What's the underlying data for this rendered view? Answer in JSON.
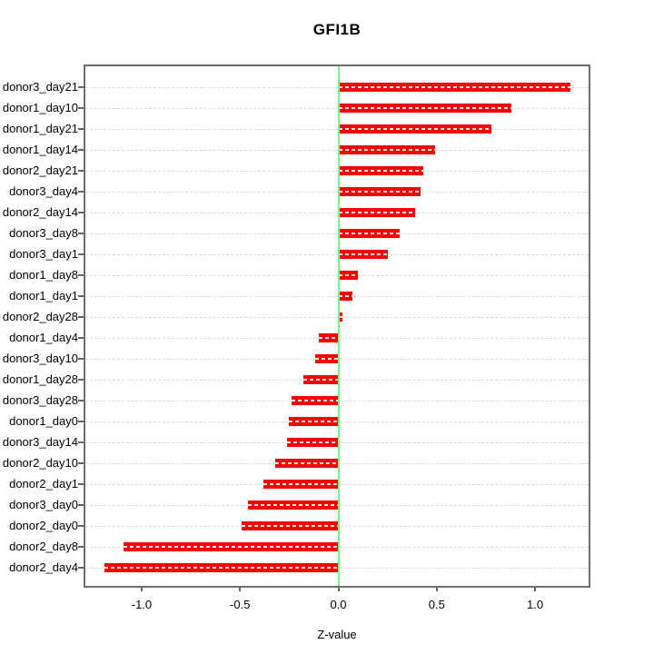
{
  "title": "GFI1B",
  "xlabel": "Z-value",
  "chart_data": {
    "type": "bar",
    "orientation": "horizontal",
    "title": "GFI1B",
    "xlabel": "Z-value",
    "ylabel": "",
    "categories": [
      "donor3_day21",
      "donor1_day10",
      "donor1_day21",
      "donor1_day14",
      "donor2_day21",
      "donor3_day4",
      "donor2_day14",
      "donor3_day8",
      "donor3_day1",
      "donor1_day8",
      "donor1_day1",
      "donor2_day28",
      "donor1_day4",
      "donor3_day10",
      "donor1_day28",
      "donor3_day28",
      "donor1_day0",
      "donor3_day14",
      "donor2_day10",
      "donor2_day1",
      "donor3_day0",
      "donor2_day0",
      "donor2_day8",
      "donor2_day4"
    ],
    "values": [
      1.18,
      0.88,
      0.78,
      0.49,
      0.43,
      0.42,
      0.39,
      0.31,
      0.25,
      0.1,
      0.07,
      0.02,
      -0.1,
      -0.12,
      -0.18,
      -0.24,
      -0.25,
      -0.26,
      -0.32,
      -0.38,
      -0.46,
      -0.49,
      -1.09,
      -1.19
    ],
    "x_ticks": [
      -1.0,
      -0.5,
      0.0,
      0.5,
      1.0
    ],
    "x_tick_labels": [
      "-1.0",
      "-0.5",
      "0.0",
      "0.5",
      "1.0"
    ],
    "xlim": [
      -1.286,
      1.272
    ],
    "grid": "horizontal-dashed-per-category",
    "legend": "none",
    "zero_reference_line": 0.0,
    "colors": {
      "bar": "#fa0000",
      "bar_dash_overlay": "#ffffff",
      "zero_line": "#87ee87",
      "grid": "#d9d9d9",
      "axis": "#666666",
      "text": "#000000"
    }
  }
}
